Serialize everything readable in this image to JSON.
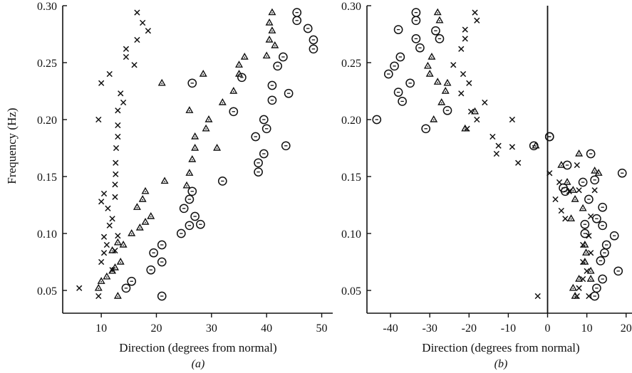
{
  "chart_data": [
    {
      "panel": "(a)",
      "type": "scatter",
      "xlabel": "Direction (degrees from normal)",
      "ylabel": "Frequency (Hz)",
      "xlim": [
        3,
        52
      ],
      "ylim": [
        0.03,
        0.3
      ],
      "xticks": [
        10,
        20,
        30,
        40,
        50
      ],
      "yticks": [
        0.05,
        0.1,
        0.15,
        0.2,
        0.25,
        0.3
      ],
      "ytick_labels": [
        "0.05",
        "0.10",
        "0.15",
        "0.20",
        "0.25",
        "0.30"
      ],
      "series": [
        {
          "marker": "cross",
          "points": [
            [
              6,
              0.052
            ],
            [
              9.5,
              0.045
            ],
            [
              10,
              0.075
            ],
            [
              10.5,
              0.083
            ],
            [
              11,
              0.09
            ],
            [
              12,
              0.068
            ],
            [
              10.5,
              0.097
            ],
            [
              12.5,
              0.085
            ],
            [
              11.5,
              0.107
            ],
            [
              12,
              0.113
            ],
            [
              13,
              0.098
            ],
            [
              10,
              0.128
            ],
            [
              10.5,
              0.135
            ],
            [
              11.2,
              0.122
            ],
            [
              12.5,
              0.132
            ],
            [
              12.5,
              0.143
            ],
            [
              12.6,
              0.152
            ],
            [
              12.6,
              0.162
            ],
            [
              12.7,
              0.175
            ],
            [
              13,
              0.185
            ],
            [
              9.5,
              0.2
            ],
            [
              13,
              0.195
            ],
            [
              13,
              0.208
            ],
            [
              14,
              0.215
            ],
            [
              13.5,
              0.223
            ],
            [
              10,
              0.232
            ],
            [
              11.5,
              0.24
            ],
            [
              14.5,
              0.255
            ],
            [
              14.5,
              0.262
            ],
            [
              16,
              0.248
            ],
            [
              16.5,
              0.27
            ],
            [
              17.5,
              0.285
            ],
            [
              18.5,
              0.278
            ],
            [
              16.5,
              0.294
            ]
          ]
        },
        {
          "marker": "triangle",
          "points": [
            [
              9.5,
              0.052
            ],
            [
              10,
              0.058
            ],
            [
              11,
              0.062
            ],
            [
              12,
              0.067
            ],
            [
              12.5,
              0.07
            ],
            [
              13,
              0.045
            ],
            [
              13.5,
              0.075
            ],
            [
              12,
              0.085
            ],
            [
              13,
              0.092
            ],
            [
              14,
              0.09
            ],
            [
              15.5,
              0.1
            ],
            [
              17,
              0.105
            ],
            [
              18,
              0.11
            ],
            [
              16.5,
              0.123
            ],
            [
              17.5,
              0.13
            ],
            [
              18,
              0.137
            ],
            [
              19,
              0.115
            ],
            [
              21.5,
              0.146
            ],
            [
              21,
              0.232
            ],
            [
              25.5,
              0.142
            ],
            [
              26,
              0.153
            ],
            [
              26.5,
              0.165
            ],
            [
              27,
              0.175
            ],
            [
              27,
              0.185
            ],
            [
              26,
              0.208
            ],
            [
              28.5,
              0.24
            ],
            [
              29,
              0.192
            ],
            [
              29.5,
              0.2
            ],
            [
              31,
              0.175
            ],
            [
              32,
              0.215
            ],
            [
              34,
              0.225
            ],
            [
              35,
              0.24
            ],
            [
              35,
              0.248
            ],
            [
              36,
              0.255
            ],
            [
              40,
              0.256
            ],
            [
              40.5,
              0.27
            ],
            [
              40.5,
              0.285
            ],
            [
              41,
              0.278
            ],
            [
              41.5,
              0.265
            ],
            [
              41,
              0.294
            ]
          ]
        },
        {
          "marker": "circle",
          "points": [
            [
              14.5,
              0.052
            ],
            [
              15.5,
              0.058
            ],
            [
              19,
              0.068
            ],
            [
              19.5,
              0.083
            ],
            [
              21,
              0.075
            ],
            [
              21,
              0.09
            ],
            [
              21,
              0.045
            ],
            [
              24.5,
              0.1
            ],
            [
              25,
              0.122
            ],
            [
              26,
              0.107
            ],
            [
              26,
              0.13
            ],
            [
              26.5,
              0.137
            ],
            [
              27,
              0.115
            ],
            [
              28,
              0.108
            ],
            [
              32,
              0.146
            ],
            [
              26.5,
              0.232
            ],
            [
              34,
              0.207
            ],
            [
              35.5,
              0.237
            ],
            [
              38,
              0.185
            ],
            [
              38.5,
              0.154
            ],
            [
              38.5,
              0.162
            ],
            [
              39.5,
              0.17
            ],
            [
              39.5,
              0.2
            ],
            [
              40,
              0.192
            ],
            [
              41,
              0.217
            ],
            [
              41,
              0.23
            ],
            [
              42,
              0.247
            ],
            [
              43,
              0.255
            ],
            [
              43.5,
              0.177
            ],
            [
              44,
              0.223
            ],
            [
              45.5,
              0.287
            ],
            [
              45.5,
              0.294
            ],
            [
              47.5,
              0.28
            ],
            [
              48.5,
              0.27
            ],
            [
              48.5,
              0.262
            ]
          ]
        }
      ]
    },
    {
      "panel": "(b)",
      "type": "scatter",
      "xlabel": "Direction (degrees from normal)",
      "xlim": [
        -46,
        21.5
      ],
      "ylim": [
        0.03,
        0.3
      ],
      "xticks": [
        -40,
        -30,
        -20,
        -10,
        0,
        10,
        20
      ],
      "yticks": [
        0.05,
        0.1,
        0.15,
        0.2,
        0.25,
        0.3
      ],
      "ytick_labels": [
        "0.05",
        "0.10",
        "0.15",
        "0.20",
        "0.25",
        "0.30"
      ],
      "reference_line_x": 0,
      "series": [
        {
          "marker": "cross",
          "points": [
            [
              -18.5,
              0.294
            ],
            [
              -18,
              0.287
            ],
            [
              -21,
              0.279
            ],
            [
              -21,
              0.271
            ],
            [
              -22,
              0.262
            ],
            [
              -24,
              0.248
            ],
            [
              -21.5,
              0.24
            ],
            [
              -20,
              0.232
            ],
            [
              -22,
              0.223
            ],
            [
              -16,
              0.215
            ],
            [
              -19.5,
              0.207
            ],
            [
              -18,
              0.2
            ],
            [
              -20.5,
              0.192
            ],
            [
              -14,
              0.185
            ],
            [
              -12.5,
              0.177
            ],
            [
              -13,
              0.17
            ],
            [
              -9,
              0.2
            ],
            [
              -9,
              0.176
            ],
            [
              -7.5,
              0.162
            ],
            [
              -2.5,
              0.045
            ],
            [
              0.5,
              0.153
            ],
            [
              3,
              0.145
            ],
            [
              2,
              0.13
            ],
            [
              3.5,
              0.12
            ],
            [
              4.5,
              0.113
            ],
            [
              5.5,
              0.137
            ],
            [
              7.5,
              0.16
            ],
            [
              8,
              0.138
            ],
            [
              10.5,
              0.098
            ],
            [
              11,
              0.083
            ],
            [
              9,
              0.075
            ],
            [
              9,
              0.06
            ],
            [
              8,
              0.052
            ],
            [
              10,
              0.067
            ],
            [
              7.5,
              0.045
            ],
            [
              10.5,
              0.045
            ],
            [
              9,
              0.09
            ],
            [
              11,
              0.115
            ],
            [
              12,
              0.138
            ]
          ]
        },
        {
          "marker": "triangle",
          "points": [
            [
              -28,
              0.294
            ],
            [
              -27.5,
              0.287
            ],
            [
              -29,
              0.2
            ],
            [
              -30.5,
              0.247
            ],
            [
              -30,
              0.24
            ],
            [
              -29.5,
              0.255
            ],
            [
              -28,
              0.233
            ],
            [
              -26,
              0.225
            ],
            [
              -27,
              0.215
            ],
            [
              -25.5,
              0.232
            ],
            [
              -21,
              0.192
            ],
            [
              -18.5,
              0.207
            ],
            [
              -3,
              0.177
            ],
            [
              3.5,
              0.16
            ],
            [
              5,
              0.145
            ],
            [
              6.5,
              0.138
            ],
            [
              8,
              0.17
            ],
            [
              7,
              0.13
            ],
            [
              6,
              0.113
            ],
            [
              9,
              0.122
            ],
            [
              9.5,
              0.09
            ],
            [
              9.8,
              0.083
            ],
            [
              9.5,
              0.075
            ],
            [
              11,
              0.067
            ],
            [
              12,
              0.155
            ],
            [
              13,
              0.153
            ],
            [
              6.5,
              0.052
            ],
            [
              7,
              0.045
            ],
            [
              8,
              0.06
            ],
            [
              11,
              0.06
            ]
          ]
        },
        {
          "marker": "circle",
          "points": [
            [
              -33.5,
              0.294
            ],
            [
              -33.5,
              0.287
            ],
            [
              -38,
              0.279
            ],
            [
              -28.5,
              0.278
            ],
            [
              -33.5,
              0.271
            ],
            [
              -27.5,
              0.271
            ],
            [
              -32.5,
              0.263
            ],
            [
              -37.5,
              0.255
            ],
            [
              -39,
              0.247
            ],
            [
              -40.5,
              0.24
            ],
            [
              -35,
              0.232
            ],
            [
              -38,
              0.224
            ],
            [
              -37,
              0.216
            ],
            [
              -43.5,
              0.2
            ],
            [
              -31,
              0.192
            ],
            [
              -25.5,
              0.208
            ],
            [
              -3.5,
              0.177
            ],
            [
              0.5,
              0.185
            ],
            [
              0.5,
              0.185
            ],
            [
              5,
              0.16
            ],
            [
              4,
              0.14
            ],
            [
              4.5,
              0.137
            ],
            [
              9,
              0.145
            ],
            [
              11,
              0.17
            ],
            [
              12,
              0.147
            ],
            [
              14,
              0.123
            ],
            [
              10.5,
              0.13
            ],
            [
              9.5,
              0.108
            ],
            [
              12.5,
              0.113
            ],
            [
              14,
              0.107
            ],
            [
              15,
              0.09
            ],
            [
              17,
              0.098
            ],
            [
              14.5,
              0.083
            ],
            [
              13.5,
              0.076
            ],
            [
              14,
              0.06
            ],
            [
              12.5,
              0.052
            ],
            [
              12,
              0.045
            ],
            [
              18,
              0.067
            ],
            [
              19,
              0.153
            ],
            [
              9.5,
              0.1
            ]
          ]
        }
      ]
    }
  ]
}
